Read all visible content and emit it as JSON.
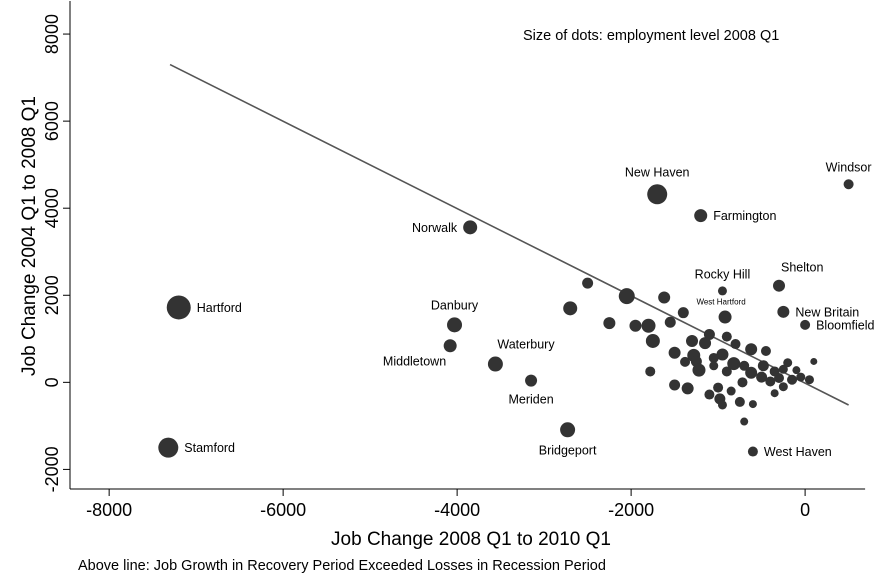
{
  "chart_data": {
    "type": "scatter",
    "title": "",
    "xlabel": "Job Change 2008 Q1 to 2010 Q1",
    "ylabel": "Job Change 2004 Q1 to 2008 Q1",
    "xlim": [
      -8450,
      700
    ],
    "ylim": [
      -2450,
      8300
    ],
    "xticks": [
      -8000,
      -6000,
      -4000,
      -2000,
      0
    ],
    "yticks": [
      -2000,
      0,
      2000,
      4000,
      6000,
      8000
    ],
    "grid": false,
    "size_note": "Size of dots: employment level 2008 Q1",
    "footnote": "Above line: Job Growth in Recovery Period Exceeded Losses in Recession Period",
    "fit_line": {
      "x1": -7300,
      "y1": 7300,
      "x2": 500,
      "y2": -520
    },
    "labeled_points": [
      {
        "label": "Windsor",
        "x": 500,
        "y": 4550,
        "size": 5,
        "label_pos": "above-center"
      },
      {
        "label": "New Haven",
        "x": -1700,
        "y": 4320,
        "size": 10,
        "label_pos": "above-center"
      },
      {
        "label": "Farmington",
        "x": -1200,
        "y": 3830,
        "size": 6.5,
        "label_pos": "right"
      },
      {
        "label": "Norwalk",
        "x": -3850,
        "y": 3560,
        "size": 7,
        "label_pos": "left"
      },
      {
        "label": "Rocky Hill",
        "x": -950,
        "y": 2100,
        "size": 4.5,
        "label_pos": "above-center"
      },
      {
        "label": "Shelton",
        "x": -300,
        "y": 2220,
        "size": 6,
        "label_pos": "above-right"
      },
      {
        "label": "Hartford",
        "x": -7200,
        "y": 1720,
        "size": 12,
        "label_pos": "right"
      },
      {
        "label": "Danbury",
        "x": -4030,
        "y": 1320,
        "size": 7.5,
        "label_pos": "above-center"
      },
      {
        "label": "West Hartford",
        "x": -920,
        "y": 1500,
        "size": 6.5,
        "label_pos": "above-small"
      },
      {
        "label": "New Britain",
        "x": -250,
        "y": 1620,
        "size": 6,
        "label_pos": "right"
      },
      {
        "label": "Bloomfield",
        "x": 0,
        "y": 1320,
        "size": 5,
        "label_pos": "right"
      },
      {
        "label": "Middletown",
        "x": -4080,
        "y": 840,
        "size": 6.5,
        "label_pos": "below-left"
      },
      {
        "label": "Waterbury",
        "x": -3560,
        "y": 420,
        "size": 7.5,
        "label_pos": "above-right"
      },
      {
        "label": "Meriden",
        "x": -3150,
        "y": 40,
        "size": 6,
        "label_pos": "below-center"
      },
      {
        "label": "Stamford",
        "x": -7320,
        "y": -1500,
        "size": 10,
        "label_pos": "right"
      },
      {
        "label": "Bridgeport",
        "x": -2730,
        "y": -1090,
        "size": 7.5,
        "label_pos": "below-center"
      },
      {
        "label": "West Haven",
        "x": -600,
        "y": -1590,
        "size": 5,
        "label_pos": "right"
      }
    ],
    "unlabeled_points": [
      {
        "x": -2500,
        "y": 2280,
        "size": 5.5
      },
      {
        "x": -2050,
        "y": 1980,
        "size": 8
      },
      {
        "x": -1620,
        "y": 1950,
        "size": 6
      },
      {
        "x": -2700,
        "y": 1700,
        "size": 7
      },
      {
        "x": -1400,
        "y": 1600,
        "size": 5.5
      },
      {
        "x": -2250,
        "y": 1360,
        "size": 6
      },
      {
        "x": -1950,
        "y": 1300,
        "size": 6
      },
      {
        "x": -1800,
        "y": 1300,
        "size": 7
      },
      {
        "x": -1550,
        "y": 1380,
        "size": 5.5
      },
      {
        "x": -1100,
        "y": 1100,
        "size": 5.5
      },
      {
        "x": -900,
        "y": 1050,
        "size": 5
      },
      {
        "x": -1300,
        "y": 950,
        "size": 6
      },
      {
        "x": -1750,
        "y": 950,
        "size": 7
      },
      {
        "x": -1150,
        "y": 900,
        "size": 6
      },
      {
        "x": -800,
        "y": 880,
        "size": 5
      },
      {
        "x": -620,
        "y": 760,
        "size": 6
      },
      {
        "x": -450,
        "y": 720,
        "size": 5
      },
      {
        "x": -1500,
        "y": 680,
        "size": 6
      },
      {
        "x": -1280,
        "y": 620,
        "size": 6.5
      },
      {
        "x": -950,
        "y": 640,
        "size": 6
      },
      {
        "x": -1050,
        "y": 560,
        "size": 5
      },
      {
        "x": -1250,
        "y": 480,
        "size": 5.5
      },
      {
        "x": -820,
        "y": 430,
        "size": 6.5
      },
      {
        "x": -1380,
        "y": 470,
        "size": 5
      },
      {
        "x": -700,
        "y": 380,
        "size": 5
      },
      {
        "x": -480,
        "y": 380,
        "size": 5.5
      },
      {
        "x": -1220,
        "y": 280,
        "size": 6.5
      },
      {
        "x": -1780,
        "y": 250,
        "size": 5
      },
      {
        "x": -900,
        "y": 250,
        "size": 5
      },
      {
        "x": -620,
        "y": 220,
        "size": 6
      },
      {
        "x": -350,
        "y": 250,
        "size": 5
      },
      {
        "x": -250,
        "y": 300,
        "size": 4.5
      },
      {
        "x": -500,
        "y": 120,
        "size": 5.5
      },
      {
        "x": -300,
        "y": 100,
        "size": 5
      },
      {
        "x": -150,
        "y": 60,
        "size": 5
      },
      {
        "x": -50,
        "y": 120,
        "size": 4.5
      },
      {
        "x": 50,
        "y": 60,
        "size": 4.5
      },
      {
        "x": -400,
        "y": 20,
        "size": 5
      },
      {
        "x": -720,
        "y": 0,
        "size": 5
      },
      {
        "x": -1500,
        "y": -60,
        "size": 5.5
      },
      {
        "x": -1350,
        "y": -140,
        "size": 6
      },
      {
        "x": -1000,
        "y": -120,
        "size": 5
      },
      {
        "x": -850,
        "y": -200,
        "size": 4.5
      },
      {
        "x": -250,
        "y": -100,
        "size": 4.5
      },
      {
        "x": -1100,
        "y": -280,
        "size": 5
      },
      {
        "x": -980,
        "y": -380,
        "size": 5.5
      },
      {
        "x": -750,
        "y": -450,
        "size": 5
      },
      {
        "x": -600,
        "y": -500,
        "size": 4
      },
      {
        "x": -350,
        "y": -250,
        "size": 4
      },
      {
        "x": -950,
        "y": -520,
        "size": 4.5
      },
      {
        "x": -700,
        "y": -900,
        "size": 4
      },
      {
        "x": -200,
        "y": 450,
        "size": 4.5
      },
      {
        "x": 100,
        "y": 480,
        "size": 3.5
      },
      {
        "x": -100,
        "y": 280,
        "size": 4
      },
      {
        "x": -1050,
        "y": 380,
        "size": 4.5
      }
    ]
  }
}
